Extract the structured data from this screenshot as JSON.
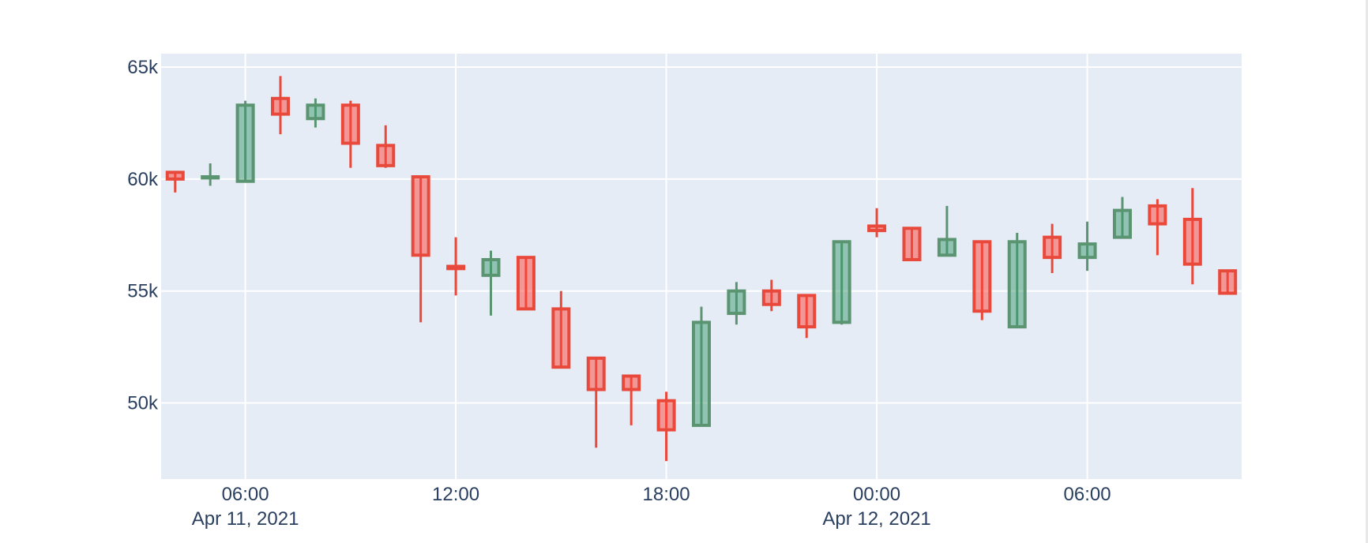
{
  "chart_data": {
    "type": "candlestick",
    "y_ticks": [
      {
        "value": 50000,
        "label": "50k"
      },
      {
        "value": 55000,
        "label": "55k"
      },
      {
        "value": 60000,
        "label": "60k"
      },
      {
        "value": 65000,
        "label": "65k"
      }
    ],
    "x_ticks": [
      {
        "time": "2021-04-11T06:00",
        "label": "06:00",
        "sublabel": "Apr 11, 2021"
      },
      {
        "time": "2021-04-11T12:00",
        "label": "12:00",
        "sublabel": ""
      },
      {
        "time": "2021-04-11T18:00",
        "label": "18:00",
        "sublabel": ""
      },
      {
        "time": "2021-04-12T00:00",
        "label": "00:00",
        "sublabel": "Apr 12, 2021"
      },
      {
        "time": "2021-04-12T06:00",
        "label": "06:00",
        "sublabel": ""
      }
    ],
    "x_range": [
      "2021-04-11T03:36",
      "2021-04-12T10:24"
    ],
    "y_range": [
      46600,
      65600
    ],
    "grid": true,
    "colors": {
      "increasing": "#3d9970",
      "decreasing": "#ff4136",
      "increasing_line": "#5a9471",
      "decreasing_line": "#e8493b",
      "plot_bg": "#e5ecf6",
      "grid": "#ffffff",
      "text": "#2a3f5f"
    },
    "candles": [
      {
        "t": "2021-04-11T04:00",
        "open": 60300,
        "high": 60300,
        "low": 59400,
        "close": 60000
      },
      {
        "t": "2021-04-11T05:00",
        "open": 60050,
        "high": 60700,
        "low": 59700,
        "close": 60100
      },
      {
        "t": "2021-04-11T06:00",
        "open": 59900,
        "high": 63500,
        "low": 59900,
        "close": 63300
      },
      {
        "t": "2021-04-11T07:00",
        "open": 63600,
        "high": 64600,
        "low": 62000,
        "close": 62900
      },
      {
        "t": "2021-04-11T08:00",
        "open": 62700,
        "high": 63600,
        "low": 62300,
        "close": 63300
      },
      {
        "t": "2021-04-11T09:00",
        "open": 63300,
        "high": 63500,
        "low": 60500,
        "close": 61600
      },
      {
        "t": "2021-04-11T10:00",
        "open": 61500,
        "high": 62400,
        "low": 60500,
        "close": 60600
      },
      {
        "t": "2021-04-11T11:00",
        "open": 60100,
        "high": 60100,
        "low": 53600,
        "close": 56600
      },
      {
        "t": "2021-04-11T12:00",
        "open": 56100,
        "high": 57400,
        "low": 54800,
        "close": 56000
      },
      {
        "t": "2021-04-11T13:00",
        "open": 55700,
        "high": 56800,
        "low": 53900,
        "close": 56400
      },
      {
        "t": "2021-04-11T14:00",
        "open": 56500,
        "high": 56500,
        "low": 54200,
        "close": 54200
      },
      {
        "t": "2021-04-11T15:00",
        "open": 54200,
        "high": 55000,
        "low": 51600,
        "close": 51600
      },
      {
        "t": "2021-04-11T16:00",
        "open": 52000,
        "high": 52000,
        "low": 48000,
        "close": 50600
      },
      {
        "t": "2021-04-11T17:00",
        "open": 51200,
        "high": 51200,
        "low": 49000,
        "close": 50600
      },
      {
        "t": "2021-04-11T18:00",
        "open": 50100,
        "high": 50500,
        "low": 47400,
        "close": 48800
      },
      {
        "t": "2021-04-11T19:00",
        "open": 49000,
        "high": 54300,
        "low": 49000,
        "close": 53600
      },
      {
        "t": "2021-04-11T20:00",
        "open": 54000,
        "high": 55400,
        "low": 53500,
        "close": 55000
      },
      {
        "t": "2021-04-11T21:00",
        "open": 55000,
        "high": 55500,
        "low": 54100,
        "close": 54400
      },
      {
        "t": "2021-04-11T22:00",
        "open": 54800,
        "high": 54800,
        "low": 52900,
        "close": 53400
      },
      {
        "t": "2021-04-11T23:00",
        "open": 53600,
        "high": 57200,
        "low": 53500,
        "close": 57200
      },
      {
        "t": "2021-04-12T00:00",
        "open": 57900,
        "high": 58700,
        "low": 57400,
        "close": 57700
      },
      {
        "t": "2021-04-12T01:00",
        "open": 57800,
        "high": 57800,
        "low": 56400,
        "close": 56400
      },
      {
        "t": "2021-04-12T02:00",
        "open": 56600,
        "high": 58800,
        "low": 56600,
        "close": 57300
      },
      {
        "t": "2021-04-12T03:00",
        "open": 57200,
        "high": 57200,
        "low": 53700,
        "close": 54100
      },
      {
        "t": "2021-04-12T04:00",
        "open": 53400,
        "high": 57600,
        "low": 53400,
        "close": 57200
      },
      {
        "t": "2021-04-12T05:00",
        "open": 57400,
        "high": 58000,
        "low": 55800,
        "close": 56500
      },
      {
        "t": "2021-04-12T06:00",
        "open": 56500,
        "high": 58100,
        "low": 55900,
        "close": 57100
      },
      {
        "t": "2021-04-12T07:00",
        "open": 57400,
        "high": 59200,
        "low": 57400,
        "close": 58600
      },
      {
        "t": "2021-04-12T08:00",
        "open": 58800,
        "high": 59100,
        "low": 56600,
        "close": 58000
      },
      {
        "t": "2021-04-12T09:00",
        "open": 58200,
        "high": 59600,
        "low": 55300,
        "close": 56200
      },
      {
        "t": "2021-04-12T10:00",
        "open": 55900,
        "high": 55900,
        "low": 54900,
        "close": 54900
      }
    ]
  }
}
